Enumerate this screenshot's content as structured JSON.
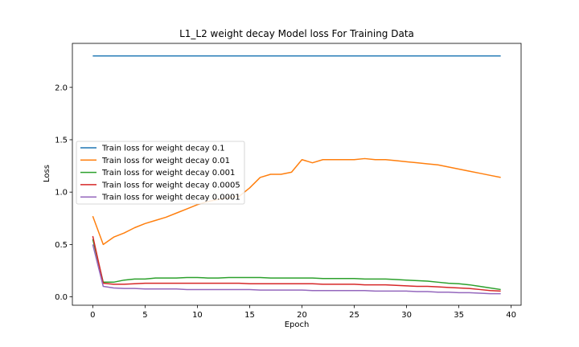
{
  "chart_data": {
    "type": "line",
    "title": "L1_L2 weight decay Model loss For Training Data",
    "xlabel": "Epoch",
    "ylabel": "Loss",
    "xlim": [
      -1.95,
      40.95
    ],
    "ylim": [
      -0.08,
      2.42
    ],
    "xticks": [
      0,
      5,
      10,
      15,
      20,
      25,
      30,
      35,
      40
    ],
    "yticks": [
      0.0,
      0.5,
      1.0,
      1.5,
      2.0
    ],
    "ytick_labels": [
      "0.0",
      "0.5",
      "1.0",
      "1.5",
      "2.0"
    ],
    "legend_position": "center-left",
    "grid": false,
    "x": [
      0,
      1,
      2,
      3,
      4,
      5,
      6,
      7,
      8,
      9,
      10,
      11,
      12,
      13,
      14,
      15,
      16,
      17,
      18,
      19,
      20,
      21,
      22,
      23,
      24,
      25,
      26,
      27,
      28,
      29,
      30,
      31,
      32,
      33,
      34,
      35,
      36,
      37,
      38,
      39
    ],
    "series": [
      {
        "name": "Train loss for weight decay 0.1",
        "color": "#1f77b4",
        "values": [
          2.3,
          2.3,
          2.3,
          2.3,
          2.3,
          2.3,
          2.3,
          2.3,
          2.3,
          2.3,
          2.3,
          2.3,
          2.3,
          2.3,
          2.3,
          2.3,
          2.3,
          2.3,
          2.3,
          2.3,
          2.3,
          2.3,
          2.3,
          2.3,
          2.3,
          2.3,
          2.3,
          2.3,
          2.3,
          2.3,
          2.3,
          2.3,
          2.3,
          2.3,
          2.3,
          2.3,
          2.3,
          2.3,
          2.3,
          2.3
        ]
      },
      {
        "name": "Train loss for weight decay 0.01",
        "color": "#ff7f0e",
        "values": [
          0.77,
          0.5,
          0.57,
          0.61,
          0.66,
          0.7,
          0.73,
          0.76,
          0.8,
          0.84,
          0.88,
          0.91,
          0.93,
          0.95,
          0.96,
          1.04,
          1.14,
          1.17,
          1.17,
          1.19,
          1.31,
          1.28,
          1.31,
          1.31,
          1.31,
          1.31,
          1.32,
          1.31,
          1.31,
          1.3,
          1.29,
          1.28,
          1.27,
          1.26,
          1.24,
          1.22,
          1.2,
          1.18,
          1.16,
          1.14
        ]
      },
      {
        "name": "Train loss for weight decay 0.001",
        "color": "#2ca02c",
        "values": [
          0.55,
          0.14,
          0.14,
          0.16,
          0.17,
          0.17,
          0.18,
          0.18,
          0.18,
          0.185,
          0.185,
          0.18,
          0.18,
          0.185,
          0.185,
          0.185,
          0.185,
          0.18,
          0.18,
          0.18,
          0.18,
          0.18,
          0.175,
          0.175,
          0.175,
          0.175,
          0.17,
          0.17,
          0.17,
          0.165,
          0.16,
          0.155,
          0.15,
          0.14,
          0.13,
          0.125,
          0.115,
          0.1,
          0.085,
          0.07
        ]
      },
      {
        "name": "Train loss for weight decay 0.0005",
        "color": "#d62728",
        "values": [
          0.58,
          0.13,
          0.12,
          0.12,
          0.125,
          0.13,
          0.13,
          0.13,
          0.13,
          0.13,
          0.13,
          0.13,
          0.13,
          0.13,
          0.13,
          0.125,
          0.125,
          0.125,
          0.125,
          0.125,
          0.125,
          0.125,
          0.12,
          0.12,
          0.12,
          0.12,
          0.115,
          0.115,
          0.115,
          0.11,
          0.105,
          0.1,
          0.1,
          0.095,
          0.09,
          0.085,
          0.08,
          0.07,
          0.06,
          0.055
        ]
      },
      {
        "name": "Train loss for weight decay 0.0001",
        "color": "#9467bd",
        "values": [
          0.5,
          0.1,
          0.085,
          0.08,
          0.08,
          0.075,
          0.075,
          0.075,
          0.075,
          0.07,
          0.07,
          0.07,
          0.07,
          0.07,
          0.07,
          0.07,
          0.065,
          0.065,
          0.065,
          0.065,
          0.065,
          0.06,
          0.06,
          0.06,
          0.06,
          0.06,
          0.06,
          0.055,
          0.055,
          0.055,
          0.055,
          0.05,
          0.05,
          0.045,
          0.045,
          0.04,
          0.04,
          0.035,
          0.03,
          0.03
        ]
      }
    ]
  }
}
